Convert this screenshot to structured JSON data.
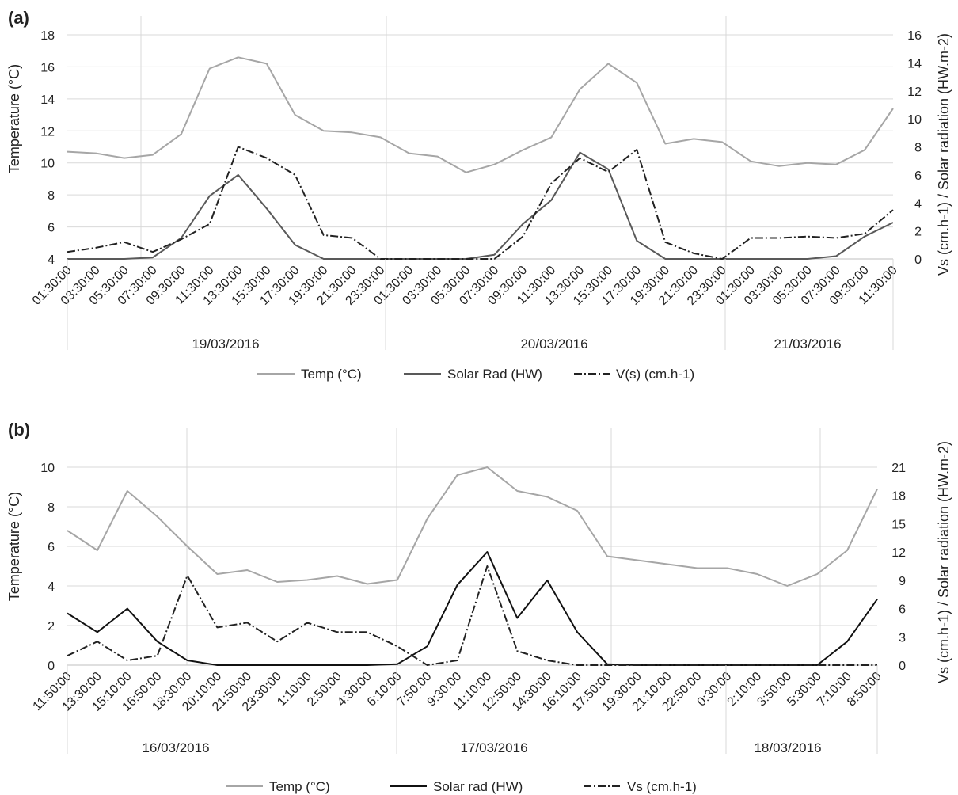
{
  "charts": [
    {
      "panel_label": "(a)",
      "left_axis_title": "Temperature (°C)",
      "right_axis_title": "Vs (cm.h-1) / Solar radiation (HW.m-2)",
      "dates": [
        "19/03/2016",
        "20/03/2016",
        "21/03/2016"
      ],
      "legend": [
        "Temp (°C)",
        "Solar Rad (HW)",
        "V(s) (cm.h-1)"
      ],
      "left_ticks": [
        "4",
        "6",
        "8",
        "10",
        "12",
        "14",
        "16",
        "18"
      ],
      "right_ticks": [
        "0",
        "2",
        "4",
        "6",
        "8",
        "10",
        "12",
        "14",
        "16"
      ],
      "x_ticks": [
        "01:30:00",
        "03:30:00",
        "05:30:00",
        "07:30:00",
        "09:30:00",
        "11:30:00",
        "13:30:00",
        "15:30:00",
        "17:30:00",
        "19:30:00",
        "21:30:00",
        "23:30:00",
        "01:30:00",
        "03:30:00",
        "05:30:00",
        "07:30:00",
        "09:30:00",
        "11:30:00",
        "13:30:00",
        "15:30:00",
        "17:30:00",
        "19:30:00",
        "21:30:00",
        "23:30:00",
        "01:30:00",
        "03:30:00",
        "05:30:00",
        "07:30:00",
        "09:30:00",
        "11:30:00"
      ]
    },
    {
      "panel_label": "(b)",
      "left_axis_title": "Temperature (°C)",
      "right_axis_title": "Vs (cm.h-1) / Solar radiation (HW.m-2)",
      "dates": [
        "16/03/2016",
        "17/03/2016",
        "18/03/2016"
      ],
      "legend": [
        "Temp (°C)",
        "Solar rad (HW)",
        "Vs (cm.h-1)"
      ],
      "left_ticks": [
        "0",
        "2",
        "4",
        "6",
        "8",
        "10"
      ],
      "right_ticks": [
        "0",
        "3",
        "6",
        "9",
        "12",
        "15",
        "18",
        "21"
      ],
      "x_ticks": [
        "11:50:00",
        "13:30:00",
        "15:10:00",
        "16:50:00",
        "18:30:00",
        "20:10:00",
        "21:50:00",
        "23:30:00",
        "1:10:00",
        "2:50:00",
        "4:30:00",
        "6:10:00",
        "7:50:00",
        "9:30:00",
        "11:10:00",
        "12:50:00",
        "14:30:00",
        "16:10:00",
        "17:50:00",
        "19:30:00",
        "21:10:00",
        "22:50:00",
        "0:30:00",
        "2:10:00",
        "3:50:00",
        "5:30:00",
        "7:10:00",
        "8:50:00"
      ]
    }
  ],
  "chart_data": [
    {
      "type": "line",
      "panel": "(a)",
      "x": [
        "01:30:00",
        "03:30:00",
        "05:30:00",
        "07:30:00",
        "09:30:00",
        "11:30:00",
        "13:30:00",
        "15:30:00",
        "17:30:00",
        "19:30:00",
        "21:30:00",
        "23:30:00",
        "01:30:00",
        "03:30:00",
        "05:30:00",
        "07:30:00",
        "09:30:00",
        "11:30:00",
        "13:30:00",
        "15:30:00",
        "17:30:00",
        "19:30:00",
        "21:30:00",
        "23:30:00",
        "01:30:00",
        "03:30:00",
        "05:30:00",
        "07:30:00",
        "09:30:00",
        "11:30:00"
      ],
      "x_groups": [
        "19/03/2016",
        "20/03/2016",
        "21/03/2016"
      ],
      "y_left_label": "Temperature (°C)",
      "y_left_lim": [
        4,
        18
      ],
      "y_right_label": "Vs (cm.h-1) / Solar radiation (HW.m-2)",
      "y_right_lim": [
        0,
        16
      ],
      "grid": true,
      "legend_position": "bottom",
      "series": [
        {
          "name": "Temp (°C)",
          "axis": "left",
          "color": "#a6a6a6",
          "style": "solid",
          "values": [
            10.7,
            10.6,
            10.3,
            10.5,
            11.8,
            15.9,
            16.6,
            16.2,
            13.0,
            12.0,
            11.9,
            11.6,
            10.6,
            10.4,
            9.4,
            9.9,
            10.8,
            11.6,
            14.6,
            16.2,
            15.0,
            11.2,
            11.5,
            11.3,
            10.1,
            9.8,
            10.0,
            9.9,
            10.8,
            13.4
          ]
        },
        {
          "name": "Solar Rad (HW)",
          "axis": "right",
          "color": "#595959",
          "style": "solid",
          "values": [
            0,
            0,
            0,
            0.1,
            1.5,
            4.5,
            6.0,
            3.6,
            1.0,
            0,
            0,
            0,
            0,
            0,
            0,
            0.3,
            2.5,
            4.2,
            7.6,
            6.4,
            1.3,
            0,
            0,
            0,
            0,
            0,
            0,
            0.2,
            1.6,
            2.6
          ]
        },
        {
          "name": "V(s) (cm.h-1)",
          "axis": "right",
          "color": "#222222",
          "style": "dashdot",
          "values": [
            0.5,
            0.8,
            1.2,
            0.5,
            1.4,
            2.5,
            8.0,
            7.2,
            6.0,
            1.7,
            1.5,
            0,
            0,
            0,
            0,
            0,
            1.6,
            5.4,
            7.2,
            6.2,
            7.8,
            1.2,
            0.4,
            0,
            1.5,
            1.5,
            1.6,
            1.5,
            1.8,
            3.5
          ]
        }
      ]
    },
    {
      "type": "line",
      "panel": "(b)",
      "x": [
        "11:50:00",
        "13:30:00",
        "15:10:00",
        "16:50:00",
        "18:30:00",
        "20:10:00",
        "21:50:00",
        "23:30:00",
        "1:10:00",
        "2:50:00",
        "4:30:00",
        "6:10:00",
        "7:50:00",
        "9:30:00",
        "11:10:00",
        "12:50:00",
        "14:30:00",
        "16:10:00",
        "17:50:00",
        "19:30:00",
        "21:10:00",
        "22:50:00",
        "0:30:00",
        "2:10:00",
        "3:50:00",
        "5:30:00",
        "7:10:00",
        "8:50:00"
      ],
      "x_groups": [
        "16/03/2016",
        "17/03/2016",
        "18/03/2016"
      ],
      "y_left_label": "Temperature (°C)",
      "y_left_lim": [
        0,
        10
      ],
      "y_right_label": "Vs (cm.h-1) / Solar radiation (HW.m-2)",
      "y_right_lim": [
        0,
        21
      ],
      "grid": true,
      "legend_position": "bottom",
      "series": [
        {
          "name": "Temp (°C)",
          "axis": "left",
          "color": "#a6a6a6",
          "style": "solid",
          "values": [
            6.8,
            5.8,
            8.8,
            7.5,
            6.0,
            4.6,
            4.8,
            4.2,
            4.3,
            4.5,
            4.1,
            4.3,
            7.4,
            9.6,
            10.0,
            8.8,
            8.5,
            7.8,
            5.5,
            5.3,
            5.1,
            4.9,
            4.9,
            4.6,
            4.0,
            4.6,
            5.8,
            8.9
          ]
        },
        {
          "name": "Solar rad (HW)",
          "axis": "right",
          "color": "#111111",
          "style": "solid",
          "values": [
            5.5,
            3.5,
            6.0,
            2.5,
            0.5,
            0,
            0,
            0,
            0,
            0,
            0,
            0.1,
            2.0,
            8.5,
            12.0,
            5.0,
            9.0,
            3.5,
            0.1,
            0,
            0,
            0,
            0,
            0,
            0,
            0,
            2.5,
            7.0
          ]
        },
        {
          "name": "Vs (cm.h-1)",
          "axis": "right",
          "color": "#222222",
          "style": "dashdot",
          "values": [
            1.0,
            2.5,
            0.5,
            1.0,
            9.5,
            4.0,
            4.5,
            2.5,
            4.5,
            3.5,
            3.5,
            2.0,
            0,
            0.5,
            10.5,
            1.5,
            0.5,
            0,
            0,
            0,
            0,
            0,
            0,
            0,
            0,
            0,
            0,
            0
          ]
        }
      ]
    }
  ]
}
